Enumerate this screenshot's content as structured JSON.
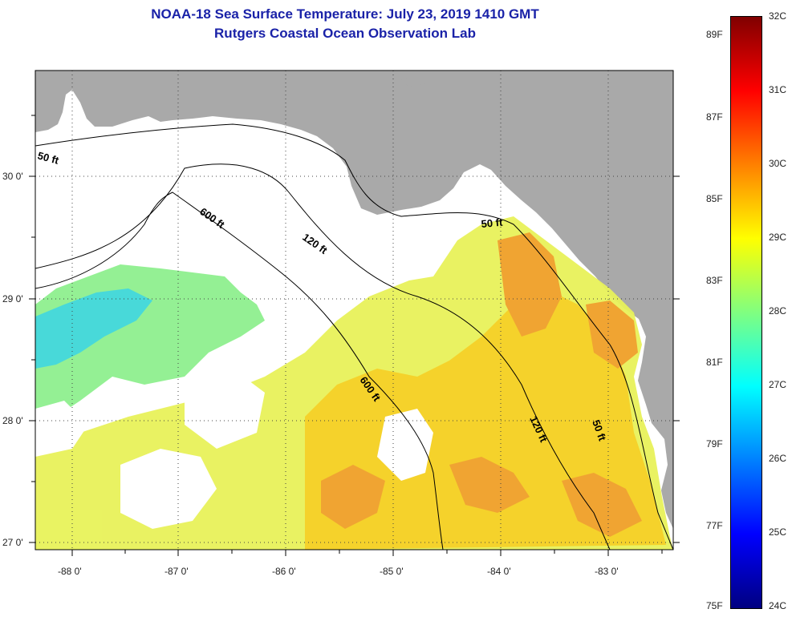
{
  "title": {
    "line1": "NOAA-18 Sea Surface Temperature:  July 23, 2019 1410 GMT",
    "line2": "Rutgers Coastal Ocean Observation Lab"
  },
  "map": {
    "lon_labels": [
      "-88 0'",
      "-87 0'",
      "-86 0'",
      "-85 0'",
      "-84 0'",
      "-83 0'"
    ],
    "lat_labels": [
      "30 0'",
      "29 0'",
      "28 0'",
      "27 0'"
    ],
    "contour_labels": [
      "50 ft",
      "600 ft",
      "120 ft",
      "50 ft",
      "600 ft",
      "120 ft",
      "50 ft"
    ],
    "colors": {
      "land": "#a9a9a9",
      "no_data": "#ffffff",
      "contour": "#000000"
    }
  },
  "colorbar": {
    "celsius": [
      "32C",
      "31C",
      "30C",
      "29C",
      "28C",
      "27C",
      "26C",
      "25C",
      "24C"
    ],
    "fahrenheit": [
      "89F",
      "87F",
      "85F",
      "83F",
      "81F",
      "79F",
      "77F",
      "75F"
    ],
    "gradient_colors": [
      "#800000",
      "#ff0000",
      "#ff8000",
      "#ffff00",
      "#80ff80",
      "#00ffff",
      "#0080ff",
      "#0000ff",
      "#000080"
    ]
  }
}
